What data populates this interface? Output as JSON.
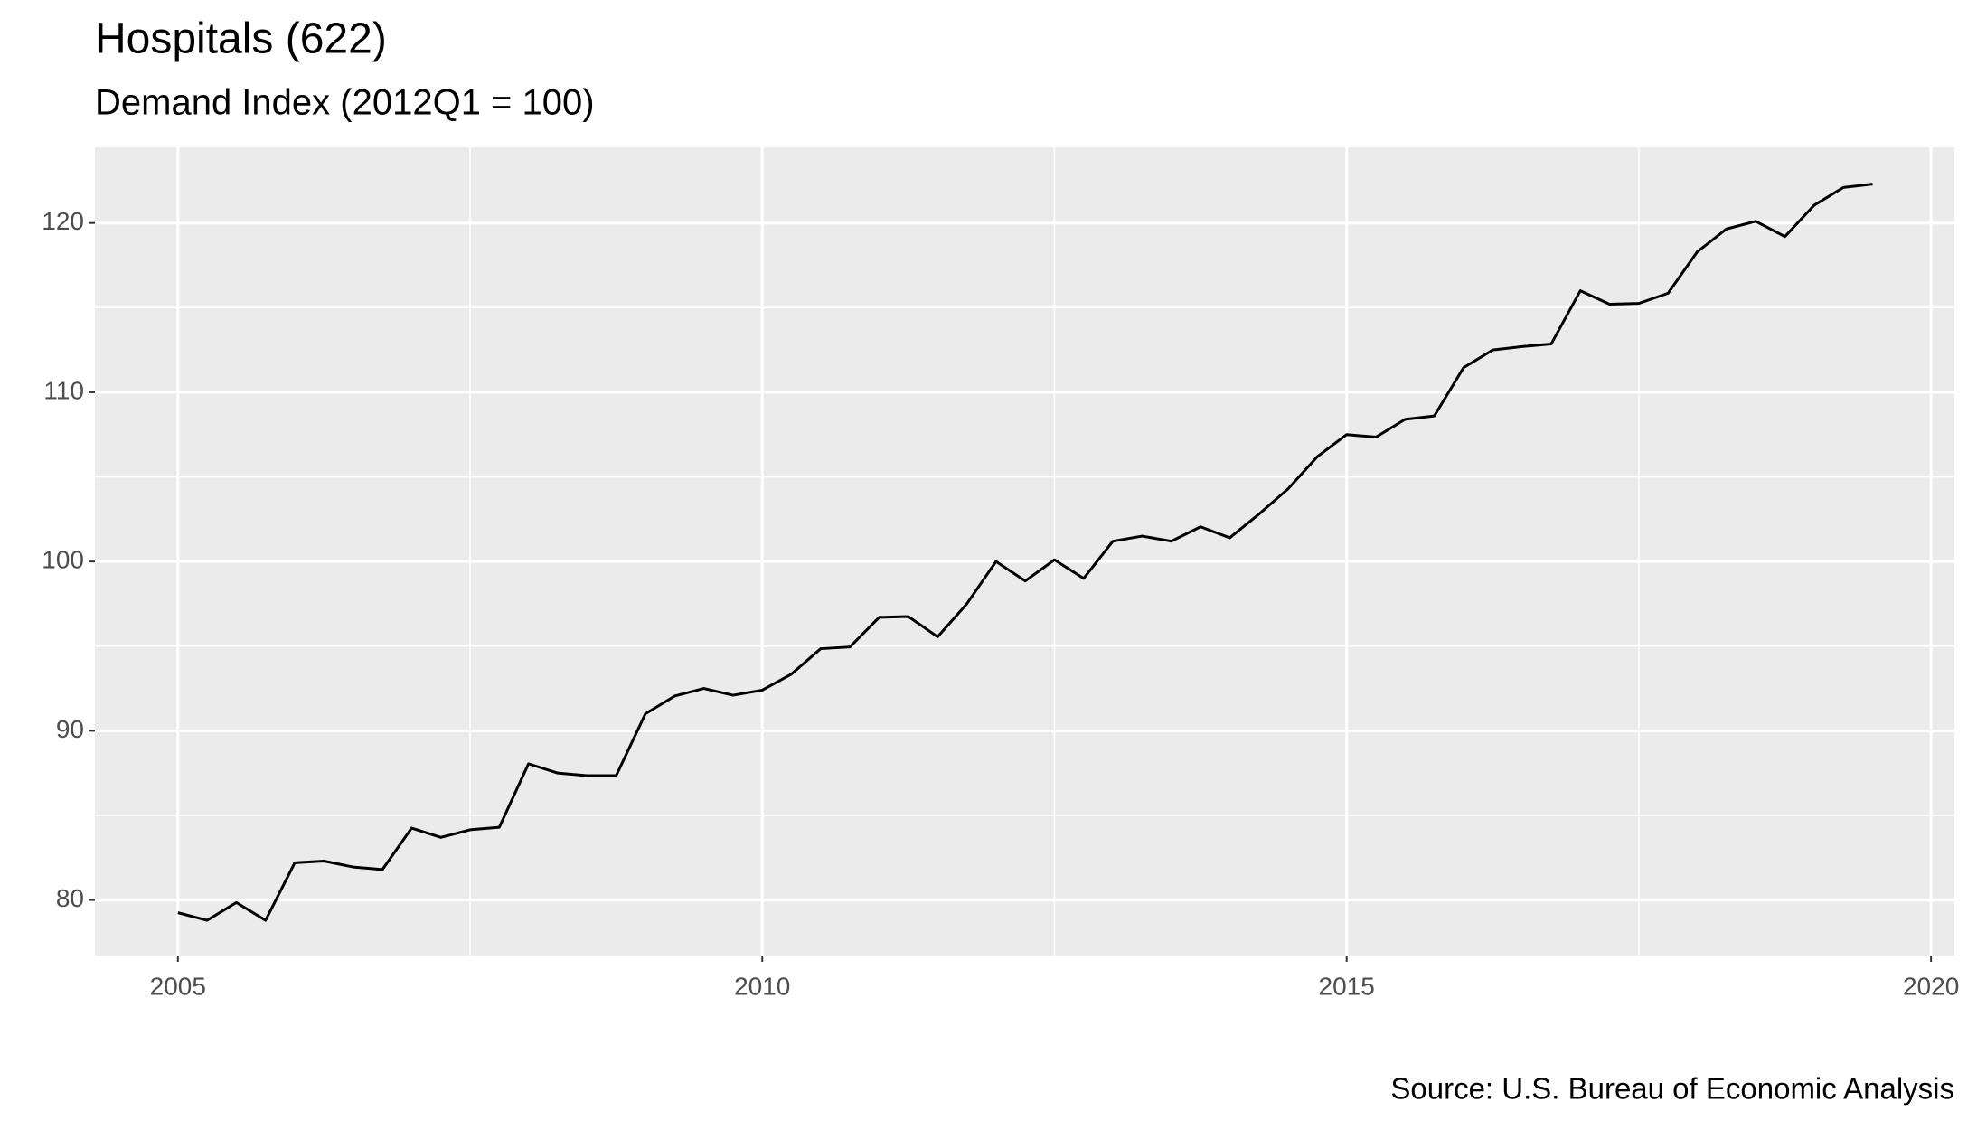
{
  "chart_data": {
    "type": "line",
    "title": "Hospitals (622)",
    "subtitle": "Demand Index (2012Q1 = 100)",
    "source": "Source: U.S. Bureau of Economic Analysis",
    "x": [
      2005,
      2005.25,
      2005.5,
      2005.75,
      2006,
      2006.25,
      2006.5,
      2006.75,
      2007,
      2007.25,
      2007.5,
      2007.75,
      2008,
      2008.25,
      2008.5,
      2008.75,
      2009,
      2009.25,
      2009.5,
      2009.75,
      2010,
      2010.25,
      2010.5,
      2010.75,
      2011,
      2011.25,
      2011.5,
      2011.75,
      2012,
      2012.25,
      2012.5,
      2012.75,
      2013,
      2013.25,
      2013.5,
      2013.75,
      2014,
      2014.25,
      2014.5,
      2014.75,
      2015,
      2015.25,
      2015.5,
      2015.75,
      2016,
      2016.25,
      2016.5,
      2016.75,
      2017,
      2017.25,
      2017.5,
      2017.75,
      2018,
      2018.25,
      2018.5,
      2018.75,
      2019,
      2019.25,
      2019.5
    ],
    "series": [
      {
        "color": "#000000",
        "values": [
          79.25,
          78.8,
          79.85,
          78.8,
          82.2,
          82.3,
          81.95,
          81.8,
          84.25,
          83.7,
          84.15,
          84.3,
          88.05,
          87.5,
          87.35,
          87.35,
          91.0,
          92.05,
          92.5,
          92.1,
          92.4,
          93.35,
          94.85,
          94.95,
          96.7,
          96.75,
          95.55,
          97.5,
          100,
          98.85,
          100.1,
          99.0,
          101.2,
          101.5,
          101.2,
          102.05,
          101.4,
          102.8,
          104.3,
          106.2,
          107.5,
          107.35,
          108.4,
          108.6,
          111.45,
          112.5,
          112.7,
          112.85,
          116.0,
          115.2,
          115.25,
          115.85,
          118.3,
          119.65,
          120.1,
          119.2,
          121.05,
          122.1,
          122.3
        ]
      }
    ],
    "xlim": [
      2004.29,
      2020.2
    ],
    "xticks": [
      2005,
      2010,
      2015,
      2020
    ],
    "ylim": [
      76.72,
      124.47
    ],
    "yticks": [
      80,
      90,
      100,
      110,
      120
    ],
    "grid": true
  }
}
